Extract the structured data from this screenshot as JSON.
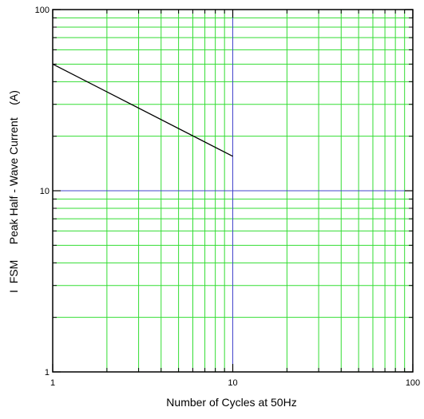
{
  "chart_data": {
    "type": "line",
    "title": "",
    "xlabel": "Number of Cycles at 50Hz",
    "ylabel": "I  FSM     Peak Half - Wave Current    (A)",
    "x_scale": "log",
    "y_scale": "log",
    "xlim": [
      1,
      100
    ],
    "ylim": [
      1,
      100
    ],
    "x_tick_labels": [
      "1",
      "10",
      "100"
    ],
    "y_tick_labels": [
      "1",
      "10",
      "100"
    ],
    "grid": true,
    "legend": "none",
    "series": [
      {
        "x": [
          1,
          10
        ],
        "y": [
          50,
          15.5
        ]
      }
    ],
    "colors": {
      "minor_grid": "#33dd33",
      "major_grid": "#4444cc",
      "line": "#000000",
      "frame": "#000000"
    }
  }
}
